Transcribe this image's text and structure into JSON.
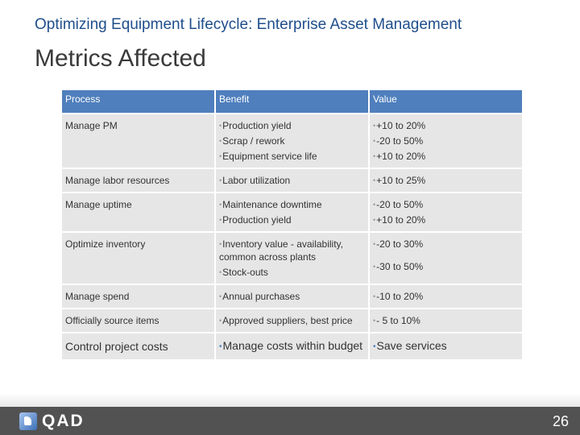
{
  "slide": {
    "title": "Optimizing Equipment Lifecycle: Enterprise Asset Management",
    "heading": "Metrics Affected",
    "page_number": "26",
    "logo_text": "QAD"
  },
  "table": {
    "headers": [
      "Process",
      "Benefit",
      "Value"
    ],
    "rows": [
      {
        "process": "Manage PM",
        "benefits": [
          "Production yield",
          "Scrap / rework",
          "Equipment service life"
        ],
        "values": [
          "+10 to 20%",
          "-20 to 50%",
          "+10 to 20%"
        ]
      },
      {
        "process": "Manage labor resources",
        "benefits": [
          "Labor utilization"
        ],
        "values": [
          "+10 to 25%"
        ]
      },
      {
        "process": "Manage uptime",
        "benefits": [
          "Maintenance downtime",
          "Production yield"
        ],
        "values": [
          "-20 to 50%",
          "+10 to 20%"
        ]
      },
      {
        "process": "Optimize inventory",
        "benefits": [
          "Inventory value - availability, common across plants",
          "Stock-outs"
        ],
        "values": [
          "-20 to 30%",
          "-30 to 50%"
        ]
      },
      {
        "process": "Manage spend",
        "benefits": [
          "Annual purchases"
        ],
        "values": [
          "-10 to 20%"
        ]
      },
      {
        "process": "Officially source items",
        "benefits": [
          "Approved suppliers, best price"
        ],
        "values": [
          "- 5 to 10%"
        ]
      },
      {
        "process": "Control project costs",
        "benefits": [
          "Manage costs within budget"
        ],
        "values": [
          "Save services"
        ]
      }
    ]
  }
}
